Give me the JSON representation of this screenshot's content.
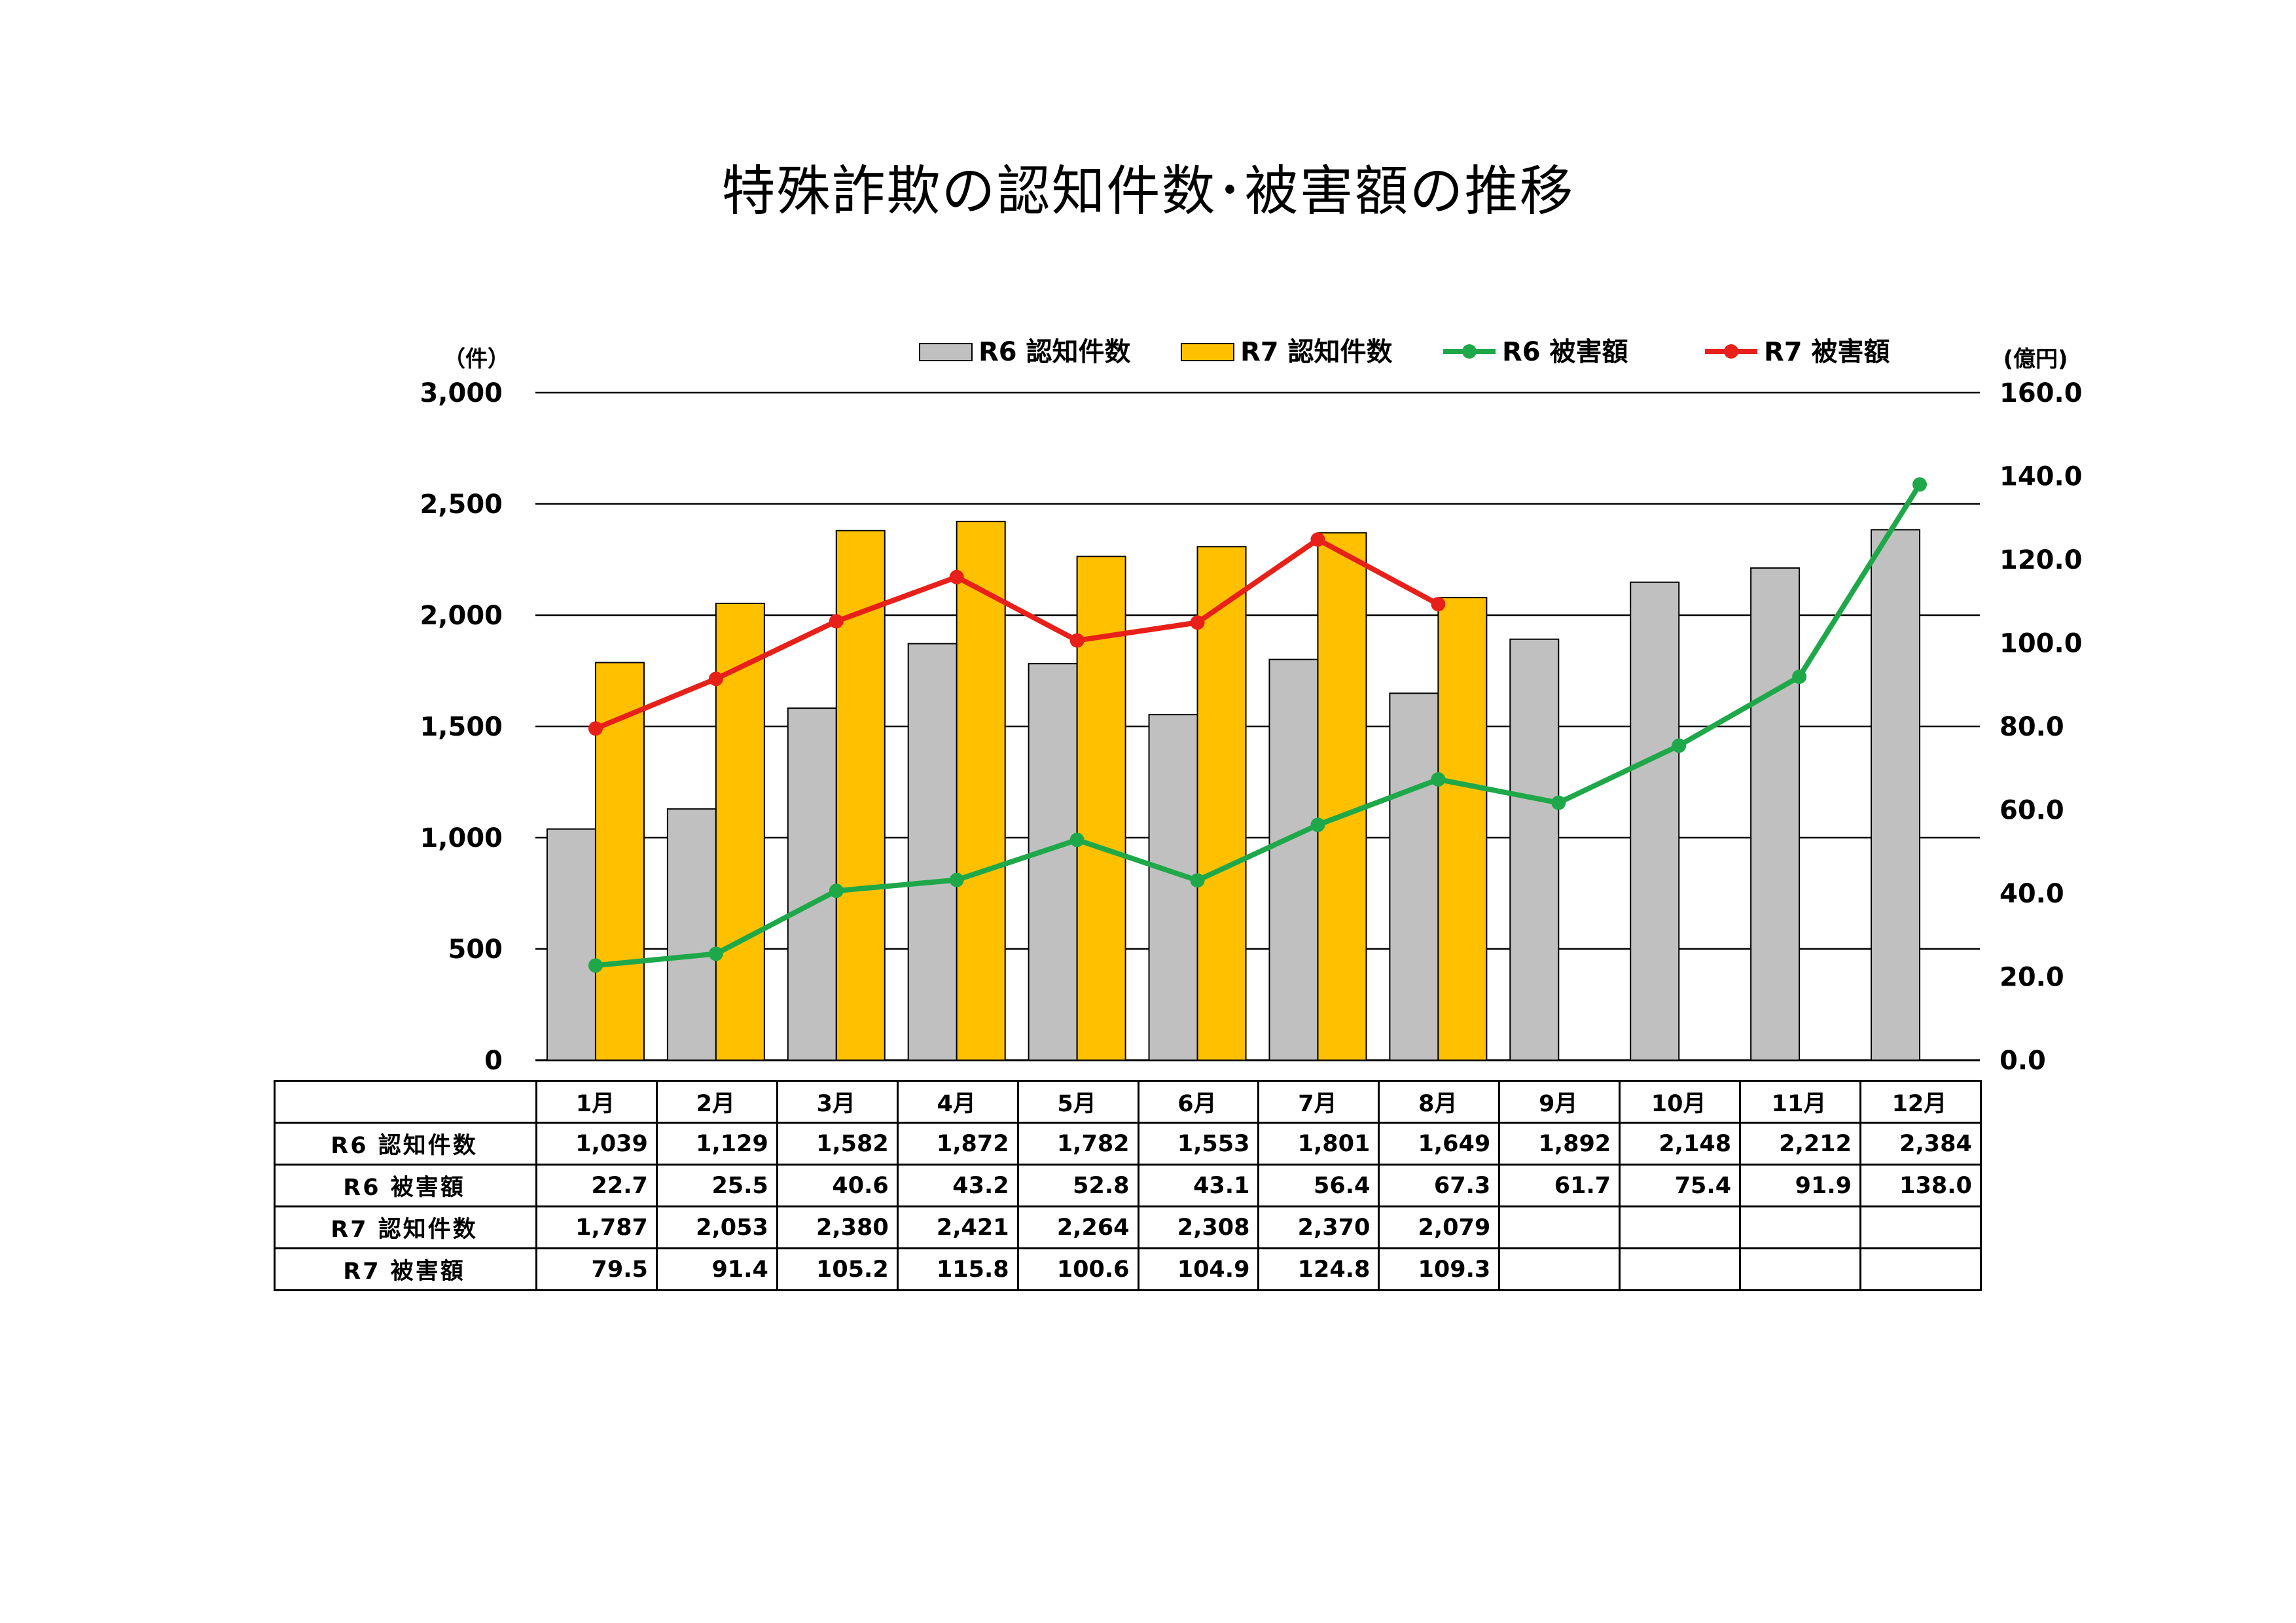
{
  "title": "特殊詐欺の認知件数･被害額の推移",
  "chart_data": {
    "type": "bar+line",
    "title": "特殊詐欺の認知件数･被害額の推移",
    "categories": [
      "1月",
      "2月",
      "3月",
      "4月",
      "5月",
      "6月",
      "7月",
      "8月",
      "9月",
      "10月",
      "11月",
      "12月"
    ],
    "y_left": {
      "unit_label": "（件）",
      "range": [
        0,
        3000
      ],
      "ticks": [
        "0",
        "500",
        "1,000",
        "1,500",
        "2,000",
        "2,500",
        "3,000"
      ]
    },
    "y_right": {
      "unit_label": "(億円)",
      "range": [
        0,
        160
      ],
      "ticks": [
        "0.0",
        "20.0",
        "40.0",
        "60.0",
        "80.0",
        "100.0",
        "120.0",
        "140.0",
        "160.0"
      ]
    },
    "grid": true,
    "legend_position": "top",
    "series": [
      {
        "name": "R6 認知件数",
        "kind": "bar",
        "axis": "left",
        "color": "#C0C0C0",
        "values": [
          1039,
          1129,
          1582,
          1872,
          1782,
          1553,
          1801,
          1649,
          1892,
          2148,
          2212,
          2384
        ],
        "labels": [
          "1,039",
          "1,129",
          "1,582",
          "1,872",
          "1,782",
          "1,553",
          "1,801",
          "1,649",
          "1,892",
          "2,148",
          "2,212",
          "2,384"
        ]
      },
      {
        "name": "R7 認知件数",
        "kind": "bar",
        "axis": "left",
        "color": "#FFC000",
        "values": [
          1787,
          2053,
          2380,
          2421,
          2264,
          2308,
          2370,
          2079,
          null,
          null,
          null,
          null
        ],
        "labels": [
          "1,787",
          "2,053",
          "2,380",
          "2,421",
          "2,264",
          "2,308",
          "2,370",
          "2,079",
          "",
          "",
          "",
          ""
        ]
      },
      {
        "name": "R6 被害額",
        "kind": "line",
        "axis": "right",
        "color": "#1FA84A",
        "values": [
          22.7,
          25.5,
          40.6,
          43.2,
          52.8,
          43.1,
          56.4,
          67.3,
          61.7,
          75.4,
          91.9,
          138.0
        ],
        "labels": [
          "22.7",
          "25.5",
          "40.6",
          "43.2",
          "52.8",
          "43.1",
          "56.4",
          "67.3",
          "61.7",
          "75.4",
          "91.9",
          "138.0"
        ]
      },
      {
        "name": "R7 被害額",
        "kind": "line",
        "axis": "right",
        "color": "#E8201A",
        "values": [
          79.5,
          91.4,
          105.2,
          115.8,
          100.6,
          104.9,
          124.8,
          109.3,
          null,
          null,
          null,
          null
        ],
        "labels": [
          "79.5",
          "91.4",
          "105.2",
          "115.8",
          "100.6",
          "104.9",
          "124.8",
          "109.3",
          "",
          "",
          "",
          ""
        ]
      }
    ],
    "table_row_order": [
      "R6 認知件数",
      "R6 被害額",
      "R7 認知件数",
      "R7 被害額"
    ]
  }
}
